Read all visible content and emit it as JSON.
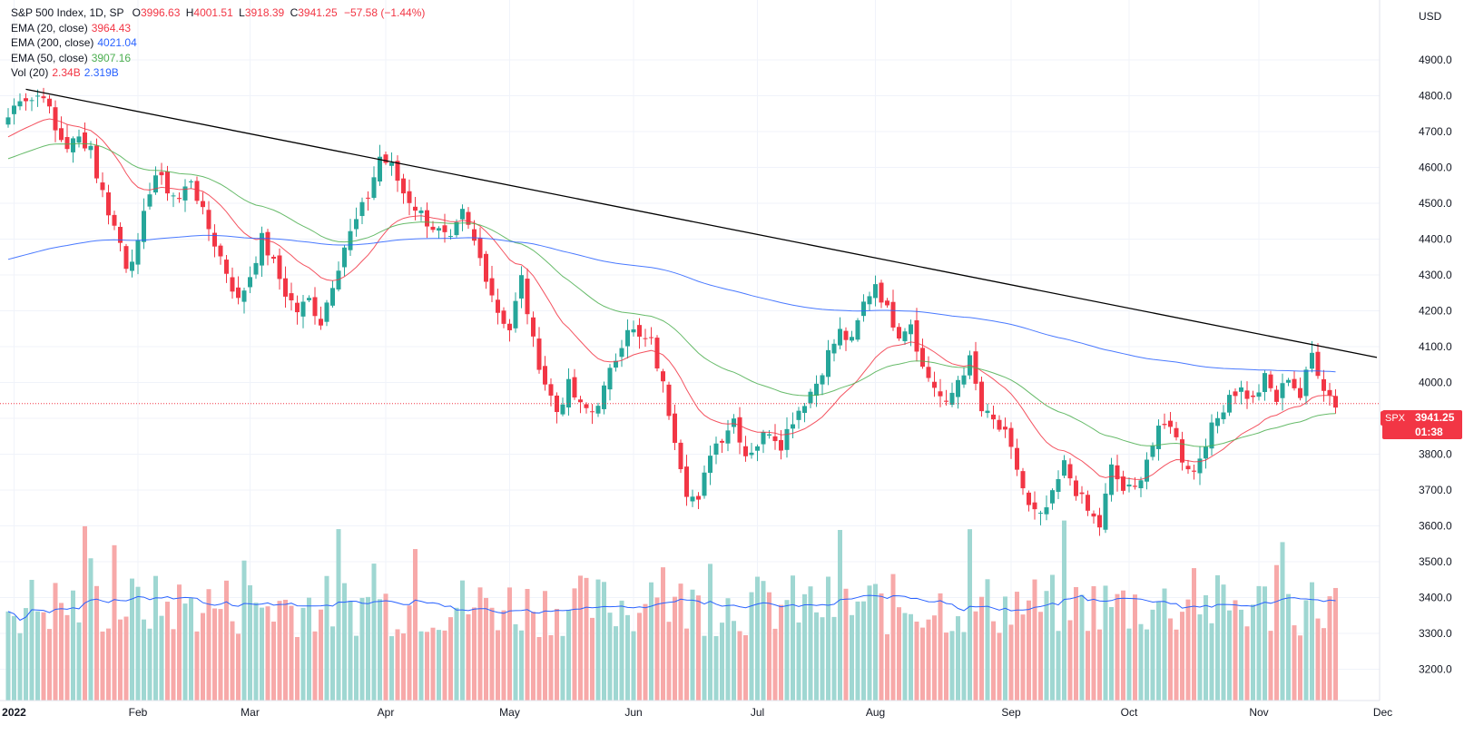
{
  "legend": {
    "symbol": "S&P 500 Index, 1D, SP",
    "open_label": "O",
    "open": "3996.63",
    "high_label": "H",
    "high": "4001.51",
    "low_label": "L",
    "low": "3918.39",
    "close_label": "C",
    "close": "3941.25",
    "change": "−57.58 (−1.44%)",
    "ema20_label": "EMA (20, close)",
    "ema20_value": "3964.43",
    "ema200_label": "EMA (200, close)",
    "ema200_value": "4021.04",
    "ema50_label": "EMA (50, close)",
    "ema50_value": "3907.16",
    "vol_label": "Vol (20)",
    "vol_value": "2.34B",
    "vol_ma": "2.319B"
  },
  "currency": "USD",
  "price_tag": {
    "symbol": "SPX",
    "price": "3941.25",
    "countdown": "01:38"
  },
  "colors": {
    "up": "#26a69a",
    "down": "#f23645",
    "ema20": "#f23645",
    "ema50": "#4caf50",
    "ema200": "#2962ff",
    "trendline": "#000000"
  },
  "chart_data": {
    "type": "candlestick",
    "y_ticks": [
      3200,
      3300,
      3400,
      3500,
      3600,
      3700,
      3800,
      3900,
      4000,
      4100,
      4200,
      4300,
      4400,
      4500,
      4600,
      4700,
      4800,
      4900
    ],
    "ylim": [
      3150,
      5000
    ],
    "x_labels": [
      {
        "label": "2022",
        "day": 1
      },
      {
        "label": "Feb",
        "day": 22
      },
      {
        "label": "Mar",
        "day": 41
      },
      {
        "label": "Apr",
        "day": 64
      },
      {
        "label": "May",
        "day": 85
      },
      {
        "label": "Jun",
        "day": 106
      },
      {
        "label": "Jul",
        "day": 127
      },
      {
        "label": "Aug",
        "day": 147
      },
      {
        "label": "Sep",
        "day": 170
      },
      {
        "label": "Oct",
        "day": 190
      },
      {
        "label": "Nov",
        "day": 212
      },
      {
        "label": "Dec",
        "day": 233
      }
    ],
    "candle_anchors": [
      [
        0,
        4740
      ],
      [
        2,
        4800
      ],
      [
        4,
        4790
      ],
      [
        6,
        4810
      ],
      [
        8,
        4700
      ],
      [
        10,
        4660
      ],
      [
        12,
        4680
      ],
      [
        14,
        4660
      ],
      [
        15,
        4580
      ],
      [
        17,
        4480
      ],
      [
        19,
        4390
      ],
      [
        20,
        4330
      ],
      [
        22,
        4380
      ],
      [
        24,
        4540
      ],
      [
        25,
        4580
      ],
      [
        27,
        4540
      ],
      [
        29,
        4510
      ],
      [
        31,
        4570
      ],
      [
        33,
        4470
      ],
      [
        35,
        4390
      ],
      [
        37,
        4310
      ],
      [
        39,
        4225
      ],
      [
        41,
        4300
      ],
      [
        43,
        4400
      ],
      [
        45,
        4330
      ],
      [
        47,
        4250
      ],
      [
        49,
        4200
      ],
      [
        51,
        4230
      ],
      [
        53,
        4170
      ],
      [
        55,
        4280
      ],
      [
        57,
        4380
      ],
      [
        59,
        4450
      ],
      [
        61,
        4520
      ],
      [
        63,
        4630
      ],
      [
        65,
        4600
      ],
      [
        67,
        4530
      ],
      [
        69,
        4490
      ],
      [
        71,
        4450
      ],
      [
        73,
        4420
      ],
      [
        75,
        4390
      ],
      [
        77,
        4470
      ],
      [
        79,
        4390
      ],
      [
        81,
        4300
      ],
      [
        83,
        4200
      ],
      [
        85,
        4150
      ],
      [
        87,
        4290
      ],
      [
        89,
        4110
      ],
      [
        91,
        4000
      ],
      [
        93,
        3920
      ],
      [
        95,
        3990
      ],
      [
        97,
        3930
      ],
      [
        99,
        3920
      ],
      [
        101,
        3980
      ],
      [
        103,
        4070
      ],
      [
        105,
        4160
      ],
      [
        107,
        4120
      ],
      [
        109,
        4110
      ],
      [
        111,
        3990
      ],
      [
        113,
        3850
      ],
      [
        115,
        3700
      ],
      [
        117,
        3660
      ],
      [
        119,
        3810
      ],
      [
        121,
        3850
      ],
      [
        123,
        3900
      ],
      [
        125,
        3800
      ],
      [
        127,
        3830
      ],
      [
        129,
        3870
      ],
      [
        131,
        3830
      ],
      [
        133,
        3900
      ],
      [
        135,
        3950
      ],
      [
        137,
        4000
      ],
      [
        139,
        4080
      ],
      [
        141,
        4140
      ],
      [
        143,
        4110
      ],
      [
        145,
        4220
      ],
      [
        147,
        4280
      ],
      [
        149,
        4200
      ],
      [
        151,
        4140
      ],
      [
        153,
        4170
      ],
      [
        155,
        4040
      ],
      [
        157,
        3990
      ],
      [
        159,
        3930
      ],
      [
        161,
        4010
      ],
      [
        163,
        4060
      ],
      [
        165,
        3920
      ],
      [
        167,
        3890
      ],
      [
        169,
        3850
      ],
      [
        171,
        3760
      ],
      [
        173,
        3650
      ],
      [
        175,
        3620
      ],
      [
        177,
        3680
      ],
      [
        179,
        3770
      ],
      [
        181,
        3700
      ],
      [
        183,
        3640
      ],
      [
        185,
        3600
      ],
      [
        187,
        3760
      ],
      [
        189,
        3700
      ],
      [
        191,
        3700
      ],
      [
        193,
        3790
      ],
      [
        195,
        3860
      ],
      [
        197,
        3890
      ],
      [
        199,
        3790
      ],
      [
        201,
        3750
      ],
      [
        203,
        3840
      ],
      [
        205,
        3900
      ],
      [
        207,
        3970
      ],
      [
        209,
        3980
      ],
      [
        211,
        3950
      ],
      [
        213,
        4010
      ],
      [
        215,
        3950
      ],
      [
        217,
        4020
      ],
      [
        219,
        3960
      ],
      [
        221,
        4080
      ],
      [
        223,
        3990
      ],
      [
        225,
        3940
      ]
    ],
    "trendline": {
      "x": [
        3,
        232
      ],
      "y": [
        4818,
        4070
      ]
    }
  }
}
